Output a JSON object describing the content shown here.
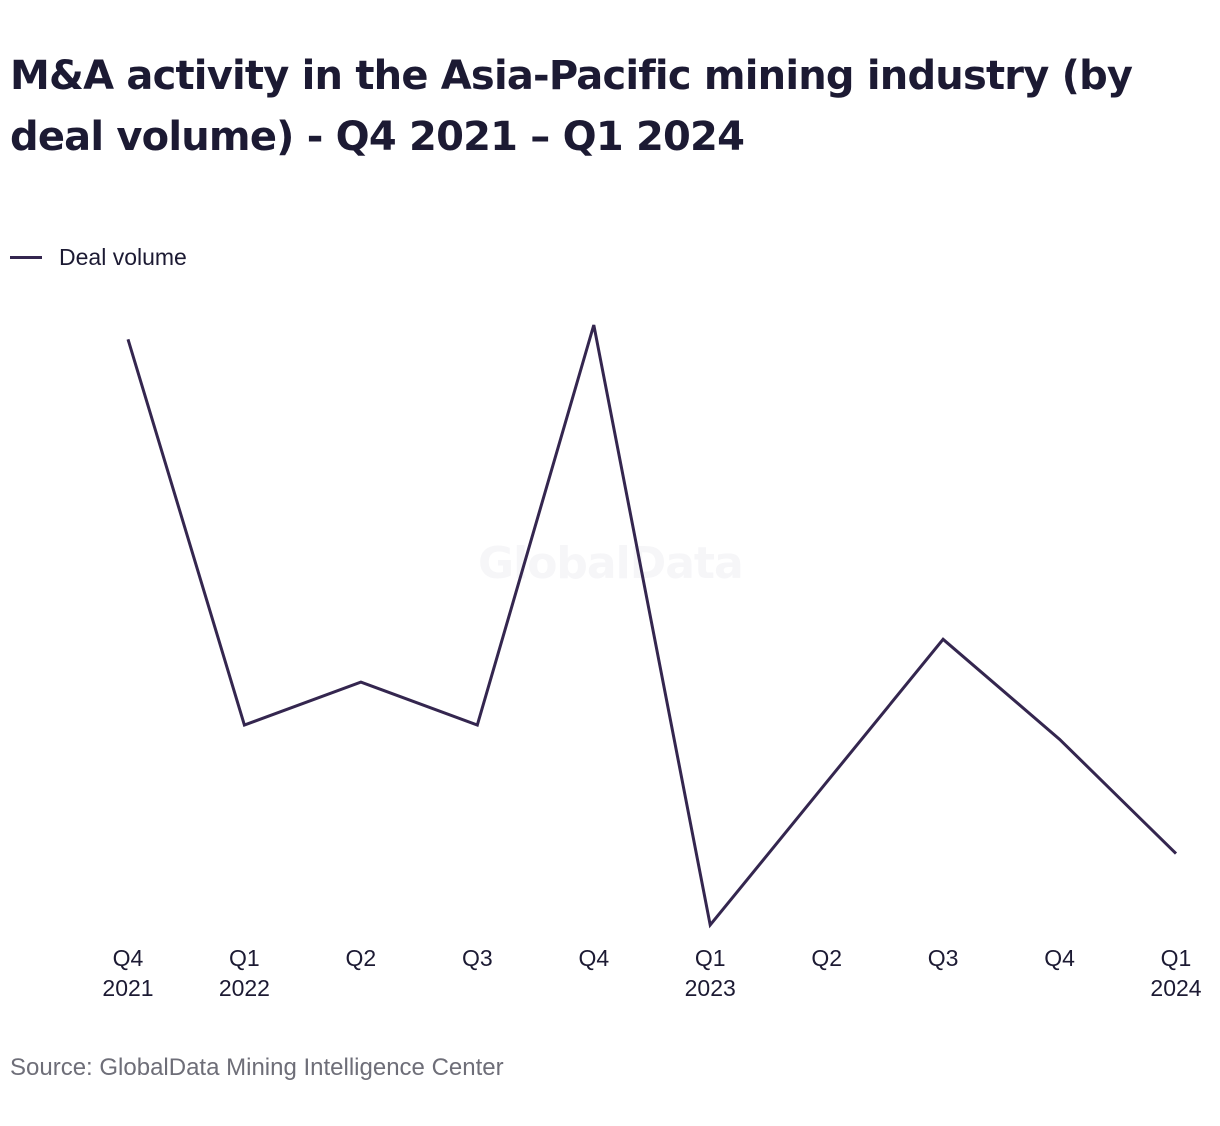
{
  "title": "M&A activity in the Asia-Pacific mining industry (by deal volume) - Q4 2021 – Q1 2024",
  "legend": {
    "label": "Deal volume"
  },
  "watermark": "GlobalData",
  "source": "Source: GlobalData Mining Intelligence Center",
  "colors": {
    "line": "#34264f",
    "text": "#1c1a33",
    "source": "#6e6e78"
  },
  "chart_data": {
    "type": "line",
    "title": "M&A activity in the Asia-Pacific mining industry (by deal volume) - Q4 2021 – Q1 2024",
    "categories": [
      [
        "Q4",
        "2021"
      ],
      [
        "Q1",
        "2022"
      ],
      [
        "Q2",
        ""
      ],
      [
        "Q3",
        ""
      ],
      [
        "Q4",
        ""
      ],
      [
        "Q1",
        "2023"
      ],
      [
        "Q2",
        ""
      ],
      [
        "Q3",
        ""
      ],
      [
        "Q4",
        ""
      ],
      [
        "Q1",
        "2024"
      ]
    ],
    "series": [
      {
        "name": "Deal volume",
        "values": [
          83,
          56,
          59,
          56,
          84,
          42,
          52,
          62,
          55,
          47
        ]
      }
    ],
    "ylim": [
      42,
      84
    ],
    "grid": false,
    "legend_position": "top-left",
    "y_axis_labels": false
  }
}
